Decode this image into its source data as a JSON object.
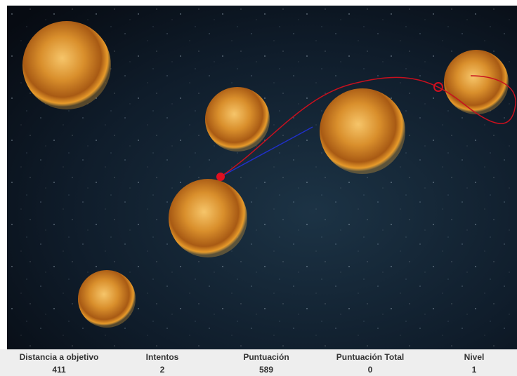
{
  "status": {
    "columns": [
      {
        "label": "Distancia a objetivo",
        "value": 411
      },
      {
        "label": "Intentos",
        "value": 2
      },
      {
        "label": "Puntuación",
        "value": 589
      },
      {
        "label": "Puntuación Total",
        "value": 0
      },
      {
        "label": "Nivel",
        "value": 1
      }
    ]
  }
}
